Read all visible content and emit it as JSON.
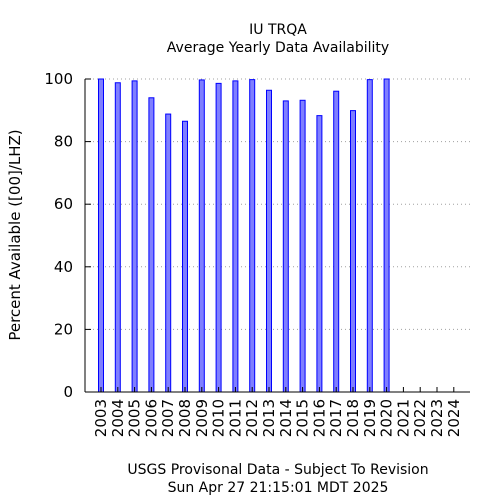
{
  "chart_data": {
    "type": "bar",
    "title": "IU TRQA",
    "subtitle": "Average Yearly Data Availability",
    "xlabel": "",
    "ylabel": "Percent Available ([00]/LHZ)",
    "footer_line1": "USGS Provisonal Data - Subject To Revision",
    "footer_line2": "Sun Apr 27 21:15:01 MDT 2025",
    "categories": [
      "2003",
      "2004",
      "2005",
      "2006",
      "2007",
      "2008",
      "2009",
      "2010",
      "2011",
      "2012",
      "2013",
      "2014",
      "2015",
      "2016",
      "2017",
      "2018",
      "2019",
      "2020",
      "2021",
      "2022",
      "2023",
      "2024"
    ],
    "values": [
      100,
      98.8,
      99.4,
      94,
      88.8,
      86.5,
      99.7,
      98.6,
      99.4,
      99.8,
      96.4,
      93,
      93.2,
      88.3,
      96.1,
      89.9,
      99.8,
      100,
      null,
      null,
      null,
      null
    ],
    "ylim": [
      0,
      100
    ],
    "yticks": [
      "0",
      "20",
      "40",
      "60",
      "80",
      "100"
    ],
    "grid": "horizontal dotted",
    "colors": {
      "bar_fill": "#7f7fff",
      "bar_stroke": "#0000ff",
      "axis": "#000000",
      "grid": "#a0a0a0"
    }
  }
}
